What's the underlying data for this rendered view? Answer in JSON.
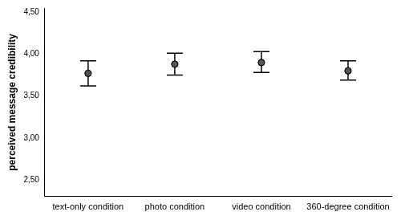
{
  "chart_data": {
    "type": "errorbar",
    "y_label": "perceived message credibility",
    "categories": [
      "text-only condition",
      "photo condition",
      "video condition",
      "360-degree condition"
    ],
    "values": [
      3.77,
      3.88,
      3.9,
      3.8
    ],
    "error_low": [
      3.62,
      3.75,
      3.78,
      3.69
    ],
    "error_high": [
      3.92,
      4.01,
      4.03,
      3.92
    ],
    "color": "#555555",
    "ylim": [
      2.3,
      4.55
    ],
    "yticks": [
      {
        "value": 2.5,
        "label": "2,50"
      },
      {
        "value": 3.0,
        "label": "3,00"
      },
      {
        "value": 3.5,
        "label": "3,50"
      },
      {
        "value": 4.0,
        "label": "4,00"
      },
      {
        "value": 4.5,
        "label": "4,50"
      }
    ],
    "grid": false
  }
}
